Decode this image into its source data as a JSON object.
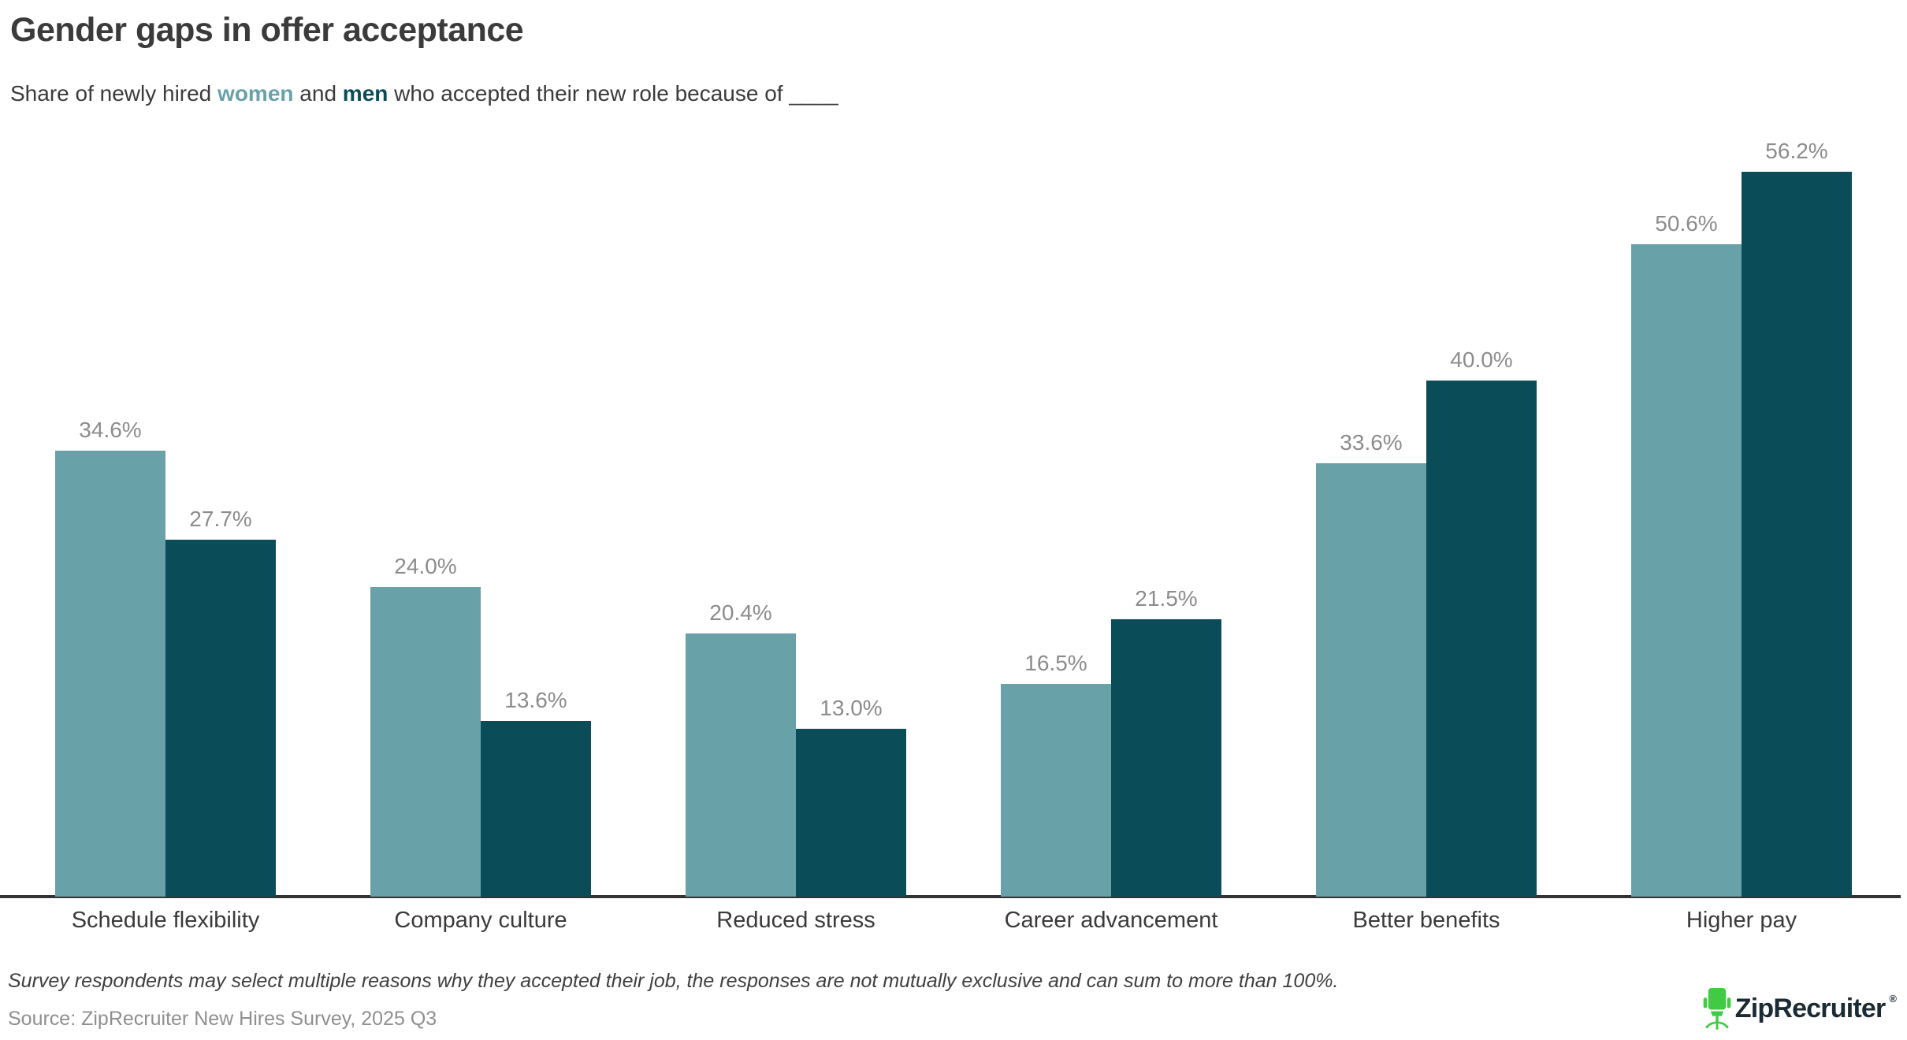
{
  "header": {
    "title": "Gender gaps in offer acceptance"
  },
  "subtitle": {
    "prefix": "Share of newly hired ",
    "women": "women",
    "mid": " and ",
    "men": "men",
    "suffix": " who accepted their new role because of ____"
  },
  "chart_data": {
    "type": "bar",
    "categories": [
      "Schedule flexibility",
      "Company culture",
      "Reduced stress",
      "Career advancement",
      "Better benefits",
      "Higher pay"
    ],
    "series": [
      {
        "name": "women",
        "color": "#69A1A9",
        "values": [
          34.6,
          24.0,
          20.4,
          16.5,
          33.6,
          50.6
        ]
      },
      {
        "name": "men",
        "color": "#0A4C57",
        "values": [
          27.7,
          13.6,
          13.0,
          21.5,
          40.0,
          56.2
        ]
      }
    ],
    "title": "Gender gaps in offer acceptance",
    "xlabel": "",
    "ylabel": "",
    "ylim": [
      0,
      60
    ],
    "grid": false,
    "legend_position": "inline-subtitle-highlight",
    "value_labels": "above-bars",
    "value_label_suffix": "%"
  },
  "footer": {
    "note": "Survey respondents may select multiple reasons why they accepted their job, the responses are not mutually exclusive and can sum to more than 100%.",
    "source": "Source: ZipRecruiter New Hires Survey, 2025 Q3"
  },
  "logo": {
    "text": "ZipRecruiter",
    "registered_mark": "®",
    "icon": "office-chair-icon",
    "icon_color": "#41CB44",
    "text_color": "#1b2b33"
  },
  "colors": {
    "women_bar": "#69A1A9",
    "men_bar": "#0A4C57",
    "axis_line": "#333333",
    "value_label": "#8c8c8c",
    "heading_text": "#3b3b3b",
    "footnote_text": "#3f3f3f",
    "source_text": "#8f8f8f",
    "background": "#ffffff"
  }
}
